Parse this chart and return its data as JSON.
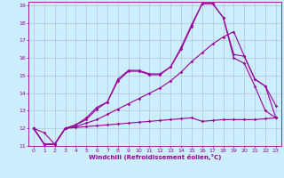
{
  "xlabel": "Windchill (Refroidissement éolien,°C)",
  "background_color": "#cceeff",
  "grid_color": "#aabbcc",
  "line_color": "#990099",
  "xlim": [
    -0.5,
    23.5
  ],
  "ylim": [
    11,
    19.2
  ],
  "xticks": [
    0,
    1,
    2,
    3,
    4,
    5,
    6,
    7,
    8,
    9,
    10,
    11,
    12,
    13,
    14,
    15,
    16,
    17,
    18,
    19,
    20,
    21,
    22,
    23
  ],
  "yticks": [
    11,
    12,
    13,
    14,
    15,
    16,
    17,
    18,
    19
  ],
  "lines": [
    {
      "x": [
        0,
        1,
        2,
        3,
        4,
        5,
        6,
        7,
        8,
        9,
        10,
        11,
        12,
        13,
        14,
        15,
        16,
        17,
        18,
        19,
        20,
        21,
        22,
        23
      ],
      "y": [
        12.0,
        11.75,
        11.1,
        12.0,
        12.05,
        12.1,
        12.15,
        12.2,
        12.25,
        12.3,
        12.35,
        12.4,
        12.45,
        12.5,
        12.55,
        12.6,
        12.4,
        12.45,
        12.5,
        12.5,
        12.5,
        12.5,
        12.55,
        12.6
      ]
    },
    {
      "x": [
        0,
        1,
        2,
        3,
        4,
        5,
        6,
        7,
        8,
        9,
        10,
        11,
        12,
        13,
        14,
        15,
        16,
        17,
        18,
        19,
        20,
        21,
        22,
        23
      ],
      "y": [
        12.0,
        11.1,
        11.1,
        12.0,
        12.1,
        12.3,
        12.5,
        12.8,
        13.1,
        13.4,
        13.7,
        14.0,
        14.3,
        14.7,
        15.2,
        15.8,
        16.3,
        16.8,
        17.2,
        17.5,
        16.1,
        14.8,
        14.4,
        12.6
      ]
    },
    {
      "x": [
        0,
        1,
        2,
        3,
        4,
        5,
        6,
        7,
        8,
        9,
        10,
        11,
        12,
        13,
        14,
        15,
        16,
        17,
        18,
        19,
        20,
        21,
        22,
        23
      ],
      "y": [
        12.0,
        11.1,
        11.1,
        12.0,
        12.2,
        12.6,
        13.2,
        13.5,
        14.8,
        15.3,
        15.3,
        15.1,
        15.1,
        15.5,
        16.6,
        17.9,
        19.1,
        19.1,
        18.3,
        16.2,
        16.1,
        14.8,
        14.4,
        13.3
      ]
    },
    {
      "x": [
        0,
        1,
        2,
        3,
        4,
        5,
        6,
        7,
        8,
        9,
        10,
        11,
        12,
        13,
        14,
        15,
        16,
        17,
        18,
        19,
        20,
        21,
        22,
        23
      ],
      "y": [
        12.0,
        11.1,
        11.1,
        12.0,
        12.2,
        12.5,
        13.1,
        13.5,
        14.7,
        15.25,
        15.25,
        15.05,
        15.05,
        15.5,
        16.5,
        17.8,
        19.1,
        19.1,
        18.3,
        16.0,
        15.7,
        14.4,
        13.0,
        12.6
      ]
    }
  ]
}
